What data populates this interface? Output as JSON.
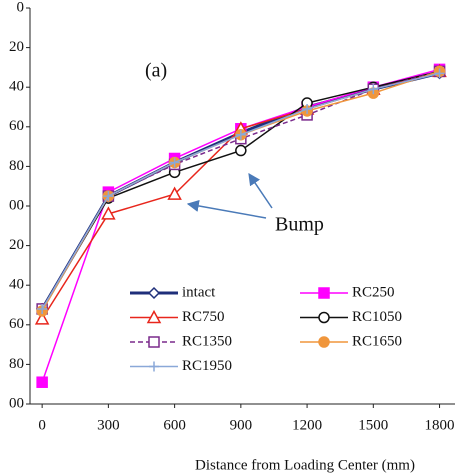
{
  "chart_data": {
    "type": "line",
    "annotations": [
      "(a)",
      "Bump"
    ],
    "x_label": "Distance from Loading Center (mm)",
    "x": [
      0,
      300,
      600,
      900,
      1200,
      1500,
      1800
    ],
    "xlim": [
      -55,
      1870
    ],
    "xticks": [
      0,
      300,
      600,
      900,
      1200,
      1500,
      1800
    ],
    "ylim": [
      0,
      200
    ],
    "y_inverted": true,
    "yticks": [
      0,
      20,
      40,
      60,
      80,
      {
        "value": 100,
        "label": "00"
      },
      {
        "value": 120,
        "label": "20"
      },
      {
        "value": 140,
        "label": "40"
      },
      {
        "value": 160,
        "label": "60"
      },
      {
        "value": 180,
        "label": "80"
      },
      {
        "value": 200,
        "label": "00"
      }
    ],
    "series": [
      {
        "name": "intact",
        "color": "#1f2f7a",
        "marker": "diamond",
        "values": [
          152,
          95,
          78,
          63,
          50,
          41,
          33
        ]
      },
      {
        "name": "RC250",
        "color": "#ff00ff",
        "marker": "square-filled",
        "values": [
          189,
          93,
          76,
          61,
          50,
          40,
          31
        ]
      },
      {
        "name": "RC750",
        "color": "#e8261c",
        "marker": "triangle",
        "values": [
          157,
          104,
          94,
          61,
          51,
          41,
          32
        ]
      },
      {
        "name": "RC1050",
        "color": "#111111",
        "marker": "circle",
        "values": [
          152,
          96,
          83,
          72,
          48,
          40,
          32
        ]
      },
      {
        "name": "RC1350",
        "color": "#7a2a8c",
        "marker": "square",
        "dashed": true,
        "values": [
          152,
          95,
          79,
          66,
          54,
          41,
          32
        ]
      },
      {
        "name": "RC1650",
        "color": "#f0963c",
        "marker": "circle-filled",
        "values": [
          153,
          95,
          78,
          64,
          52,
          43,
          32
        ]
      },
      {
        "name": "RC1950",
        "color": "#8aa8d8",
        "marker": "plus",
        "values": [
          152,
          95,
          78,
          64,
          51,
          41,
          33
        ]
      }
    ]
  }
}
